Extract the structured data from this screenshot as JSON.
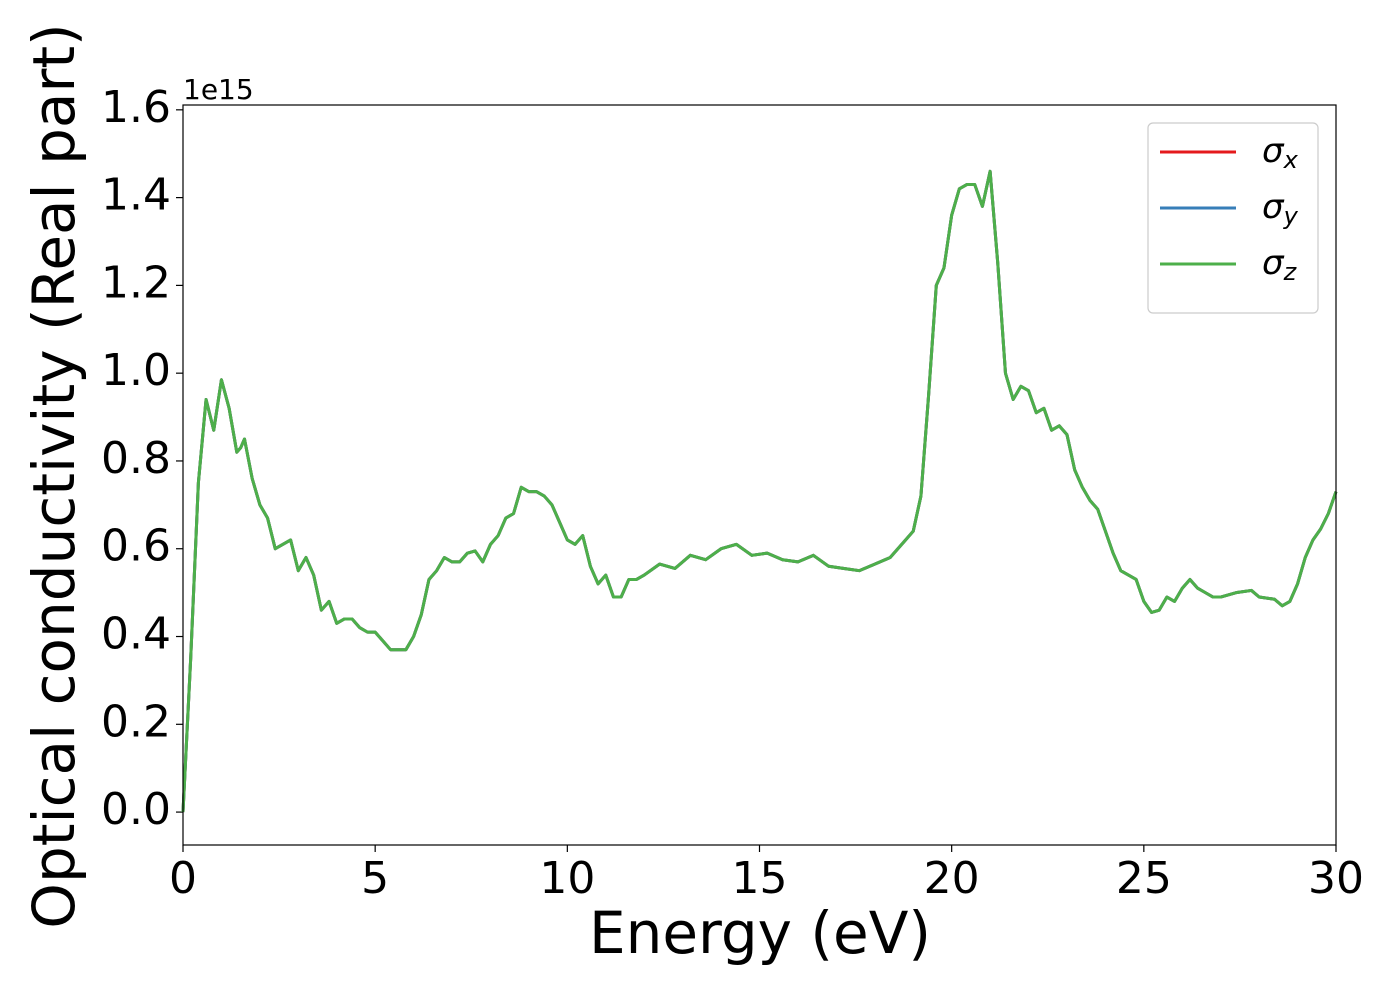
{
  "chart_data": {
    "type": "line",
    "xlabel": "Energy (eV)",
    "ylabel": "Optical conductivity (Real part)",
    "y_offset_label": "1e15",
    "x": [
      0,
      0.2,
      0.4,
      0.6,
      0.8,
      1.0,
      1.2,
      1.4,
      1.5,
      1.6,
      1.8,
      2.0,
      2.2,
      2.4,
      2.6,
      2.8,
      3.0,
      3.2,
      3.4,
      3.6,
      3.8,
      4.0,
      4.2,
      4.4,
      4.6,
      4.8,
      5.0,
      5.2,
      5.4,
      5.6,
      5.8,
      6.0,
      6.2,
      6.4,
      6.6,
      6.8,
      7.0,
      7.2,
      7.4,
      7.6,
      7.8,
      8.0,
      8.2,
      8.4,
      8.6,
      8.8,
      9.0,
      9.2,
      9.4,
      9.6,
      9.8,
      10.0,
      10.2,
      10.4,
      10.6,
      10.8,
      11.0,
      11.2,
      11.4,
      11.6,
      11.8,
      12.0,
      12.4,
      12.8,
      13.2,
      13.6,
      14.0,
      14.4,
      14.8,
      15.2,
      15.6,
      16.0,
      16.4,
      16.8,
      17.2,
      17.6,
      18.0,
      18.4,
      18.8,
      19.0,
      19.2,
      19.4,
      19.6,
      19.8,
      20.0,
      20.2,
      20.4,
      20.6,
      20.8,
      21.0,
      21.2,
      21.4,
      21.6,
      21.8,
      22.0,
      22.2,
      22.4,
      22.6,
      22.8,
      23.0,
      23.2,
      23.4,
      23.6,
      23.8,
      24.0,
      24.2,
      24.4,
      24.6,
      24.8,
      25.0,
      25.2,
      25.4,
      25.6,
      25.8,
      26.0,
      26.2,
      26.4,
      26.6,
      26.8,
      27.0,
      27.4,
      27.8,
      28.0,
      28.4,
      28.6,
      28.8,
      29.0,
      29.2,
      29.4,
      29.6,
      29.8,
      30.0
    ],
    "series": [
      {
        "name": "σx",
        "color": "#e41a1c",
        "values": [
          0,
          0.35,
          0.75,
          0.94,
          0.87,
          0.985,
          0.92,
          0.82,
          0.83,
          0.85,
          0.76,
          0.7,
          0.67,
          0.6,
          0.61,
          0.62,
          0.55,
          0.58,
          0.54,
          0.46,
          0.48,
          0.43,
          0.44,
          0.44,
          0.42,
          0.41,
          0.41,
          0.39,
          0.37,
          0.37,
          0.37,
          0.4,
          0.45,
          0.53,
          0.55,
          0.58,
          0.57,
          0.57,
          0.59,
          0.595,
          0.57,
          0.61,
          0.63,
          0.67,
          0.68,
          0.74,
          0.73,
          0.73,
          0.72,
          0.7,
          0.66,
          0.62,
          0.61,
          0.63,
          0.56,
          0.52,
          0.54,
          0.49,
          0.49,
          0.53,
          0.53,
          0.54,
          0.565,
          0.555,
          0.585,
          0.575,
          0.6,
          0.61,
          0.585,
          0.59,
          0.575,
          0.57,
          0.585,
          0.56,
          0.555,
          0.55,
          0.565,
          0.58,
          0.62,
          0.64,
          0.72,
          0.95,
          1.2,
          1.24,
          1.36,
          1.42,
          1.43,
          1.43,
          1.38,
          1.46,
          1.25,
          1.0,
          0.94,
          0.97,
          0.96,
          0.91,
          0.92,
          0.87,
          0.88,
          0.86,
          0.78,
          0.74,
          0.71,
          0.69,
          0.64,
          0.59,
          0.55,
          0.54,
          0.53,
          0.48,
          0.455,
          0.46,
          0.49,
          0.48,
          0.51,
          0.53,
          0.51,
          0.5,
          0.49,
          0.49,
          0.5,
          0.505,
          0.49,
          0.485,
          0.47,
          0.48,
          0.52,
          0.58,
          0.62,
          0.645,
          0.68,
          0.73
        ]
      },
      {
        "name": "σy",
        "color": "#377eb8",
        "values": [
          0,
          0.35,
          0.75,
          0.94,
          0.87,
          0.985,
          0.92,
          0.82,
          0.83,
          0.85,
          0.76,
          0.7,
          0.67,
          0.6,
          0.61,
          0.62,
          0.55,
          0.58,
          0.54,
          0.46,
          0.48,
          0.43,
          0.44,
          0.44,
          0.42,
          0.41,
          0.41,
          0.39,
          0.37,
          0.37,
          0.37,
          0.4,
          0.45,
          0.53,
          0.55,
          0.58,
          0.57,
          0.57,
          0.59,
          0.595,
          0.57,
          0.61,
          0.63,
          0.67,
          0.68,
          0.74,
          0.73,
          0.73,
          0.72,
          0.7,
          0.66,
          0.62,
          0.61,
          0.63,
          0.56,
          0.52,
          0.54,
          0.49,
          0.49,
          0.53,
          0.53,
          0.54,
          0.565,
          0.555,
          0.585,
          0.575,
          0.6,
          0.61,
          0.585,
          0.59,
          0.575,
          0.57,
          0.585,
          0.56,
          0.555,
          0.55,
          0.565,
          0.58,
          0.62,
          0.64,
          0.72,
          0.95,
          1.2,
          1.24,
          1.36,
          1.42,
          1.43,
          1.43,
          1.38,
          1.46,
          1.25,
          1.0,
          0.94,
          0.97,
          0.96,
          0.91,
          0.92,
          0.87,
          0.88,
          0.86,
          0.78,
          0.74,
          0.71,
          0.69,
          0.64,
          0.59,
          0.55,
          0.54,
          0.53,
          0.48,
          0.455,
          0.46,
          0.49,
          0.48,
          0.51,
          0.53,
          0.51,
          0.5,
          0.49,
          0.49,
          0.5,
          0.505,
          0.49,
          0.485,
          0.47,
          0.48,
          0.52,
          0.58,
          0.62,
          0.645,
          0.68,
          0.73
        ]
      },
      {
        "name": "σz",
        "color": "#4daf4a",
        "values": [
          0,
          0.35,
          0.75,
          0.94,
          0.87,
          0.985,
          0.92,
          0.82,
          0.83,
          0.85,
          0.76,
          0.7,
          0.67,
          0.6,
          0.61,
          0.62,
          0.55,
          0.58,
          0.54,
          0.46,
          0.48,
          0.43,
          0.44,
          0.44,
          0.42,
          0.41,
          0.41,
          0.39,
          0.37,
          0.37,
          0.37,
          0.4,
          0.45,
          0.53,
          0.55,
          0.58,
          0.57,
          0.57,
          0.59,
          0.595,
          0.57,
          0.61,
          0.63,
          0.67,
          0.68,
          0.74,
          0.73,
          0.73,
          0.72,
          0.7,
          0.66,
          0.62,
          0.61,
          0.63,
          0.56,
          0.52,
          0.54,
          0.49,
          0.49,
          0.53,
          0.53,
          0.54,
          0.565,
          0.555,
          0.585,
          0.575,
          0.6,
          0.61,
          0.585,
          0.59,
          0.575,
          0.57,
          0.585,
          0.56,
          0.555,
          0.55,
          0.565,
          0.58,
          0.62,
          0.64,
          0.72,
          0.95,
          1.2,
          1.24,
          1.36,
          1.42,
          1.43,
          1.43,
          1.38,
          1.46,
          1.25,
          1.0,
          0.94,
          0.97,
          0.96,
          0.91,
          0.92,
          0.87,
          0.88,
          0.86,
          0.78,
          0.74,
          0.71,
          0.69,
          0.64,
          0.59,
          0.55,
          0.54,
          0.53,
          0.48,
          0.455,
          0.46,
          0.49,
          0.48,
          0.51,
          0.53,
          0.51,
          0.5,
          0.49,
          0.49,
          0.5,
          0.505,
          0.49,
          0.485,
          0.47,
          0.48,
          0.52,
          0.58,
          0.62,
          0.645,
          0.68,
          0.73
        ]
      }
    ],
    "xlim": [
      0,
      30
    ],
    "xticks": [
      0,
      5,
      10,
      15,
      20,
      25,
      30
    ],
    "ylim": [
      -0.075,
      1.611
    ],
    "yticks": [
      {
        "value": 0,
        "label": "0.0"
      },
      0.2,
      0.4,
      0.6,
      0.8,
      {
        "value": 1,
        "label": "1.0"
      },
      1.2,
      1.4,
      1.6
    ],
    "grid": false,
    "legend": "upper right"
  }
}
